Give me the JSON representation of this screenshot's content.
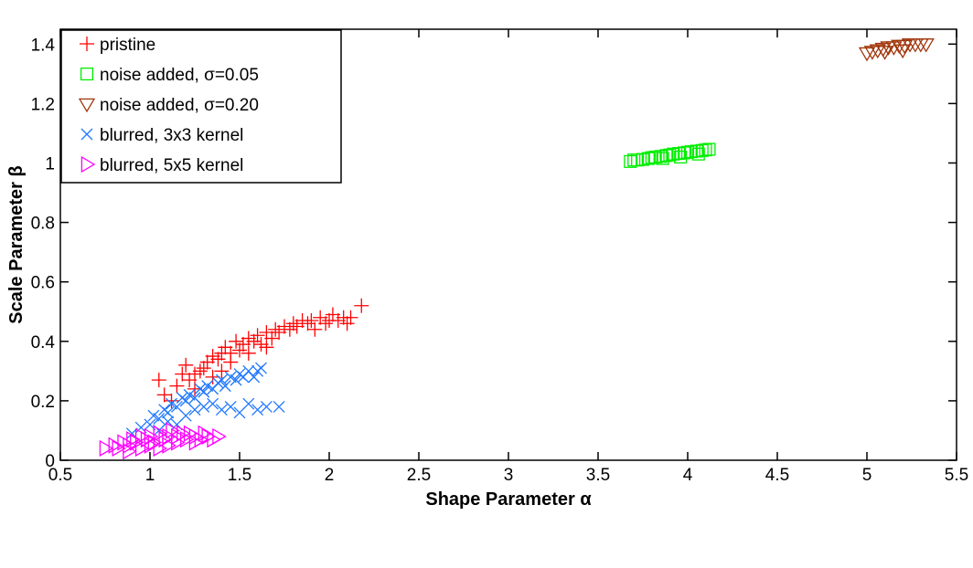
{
  "chart_data": {
    "type": "scatter",
    "title": "",
    "xlabel": "Shape Parameter α",
    "ylabel": "Scale Parameter β",
    "xlim": [
      0.5,
      5.5
    ],
    "ylim": [
      0,
      1.45
    ],
    "xticks": [
      "0.5",
      "1",
      "1.5",
      "2",
      "2.5",
      "3",
      "3.5",
      "4",
      "4.5",
      "5",
      "5.5"
    ],
    "yticks": [
      "0",
      "0.2",
      "0.4",
      "0.6",
      "0.8",
      "1",
      "1.2",
      "1.4"
    ],
    "grid": false,
    "legend_position": "top-left",
    "series": [
      {
        "name": "pristine",
        "marker": "plus",
        "color": "#ff0000",
        "points": [
          [
            1.05,
            0.27
          ],
          [
            1.08,
            0.22
          ],
          [
            1.12,
            0.2
          ],
          [
            1.15,
            0.25
          ],
          [
            1.18,
            0.29
          ],
          [
            1.2,
            0.32
          ],
          [
            1.22,
            0.27
          ],
          [
            1.25,
            0.29
          ],
          [
            1.28,
            0.3
          ],
          [
            1.3,
            0.31
          ],
          [
            1.32,
            0.33
          ],
          [
            1.35,
            0.35
          ],
          [
            1.38,
            0.34
          ],
          [
            1.4,
            0.36
          ],
          [
            1.42,
            0.38
          ],
          [
            1.45,
            0.36
          ],
          [
            1.48,
            0.4
          ],
          [
            1.5,
            0.37
          ],
          [
            1.52,
            0.39
          ],
          [
            1.55,
            0.41
          ],
          [
            1.58,
            0.4
          ],
          [
            1.6,
            0.42
          ],
          [
            1.62,
            0.39
          ],
          [
            1.65,
            0.43
          ],
          [
            1.68,
            0.41
          ],
          [
            1.7,
            0.44
          ],
          [
            1.72,
            0.43
          ],
          [
            1.75,
            0.45
          ],
          [
            1.78,
            0.44
          ],
          [
            1.8,
            0.46
          ],
          [
            1.82,
            0.45
          ],
          [
            1.85,
            0.47
          ],
          [
            1.88,
            0.46
          ],
          [
            1.9,
            0.47
          ],
          [
            1.92,
            0.44
          ],
          [
            1.95,
            0.48
          ],
          [
            1.98,
            0.46
          ],
          [
            2.0,
            0.47
          ],
          [
            2.02,
            0.49
          ],
          [
            2.05,
            0.47
          ],
          [
            2.08,
            0.48
          ],
          [
            2.1,
            0.46
          ],
          [
            2.12,
            0.48
          ],
          [
            2.18,
            0.52
          ],
          [
            1.35,
            0.28
          ],
          [
            1.45,
            0.33
          ],
          [
            1.55,
            0.36
          ],
          [
            1.65,
            0.38
          ],
          [
            1.25,
            0.24
          ],
          [
            1.4,
            0.3
          ]
        ]
      },
      {
        "name": "noise added,  σ=0.05",
        "marker": "square",
        "color": "#00ee00",
        "points": [
          [
            3.68,
            1.005
          ],
          [
            3.7,
            1.01
          ],
          [
            3.72,
            1.01
          ],
          [
            3.75,
            1.012
          ],
          [
            3.78,
            1.015
          ],
          [
            3.8,
            1.018
          ],
          [
            3.82,
            1.02
          ],
          [
            3.85,
            1.022
          ],
          [
            3.88,
            1.025
          ],
          [
            3.9,
            1.027
          ],
          [
            3.92,
            1.03
          ],
          [
            3.95,
            1.032
          ],
          [
            3.98,
            1.034
          ],
          [
            4.0,
            1.036
          ],
          [
            4.02,
            1.038
          ],
          [
            4.05,
            1.04
          ],
          [
            4.08,
            1.042
          ],
          [
            4.1,
            1.044
          ],
          [
            4.12,
            1.046
          ],
          [
            3.86,
            1.015
          ],
          [
            3.96,
            1.02
          ],
          [
            4.06,
            1.03
          ]
        ]
      },
      {
        "name": "noise added,  σ=0.20",
        "marker": "triangle-down",
        "color": "#a0350a",
        "points": [
          [
            5.0,
            1.37
          ],
          [
            5.03,
            1.375
          ],
          [
            5.06,
            1.38
          ],
          [
            5.09,
            1.385
          ],
          [
            5.12,
            1.39
          ],
          [
            5.15,
            1.39
          ],
          [
            5.18,
            1.395
          ],
          [
            5.21,
            1.395
          ],
          [
            5.24,
            1.4
          ],
          [
            5.27,
            1.4
          ],
          [
            5.3,
            1.4
          ],
          [
            5.33,
            1.4
          ],
          [
            5.1,
            1.375
          ],
          [
            5.2,
            1.38
          ]
        ]
      },
      {
        "name": "blurred, 3x3 kernel",
        "marker": "x",
        "color": "#1f77ff",
        "points": [
          [
            0.9,
            0.09
          ],
          [
            0.95,
            0.11
          ],
          [
            1.0,
            0.12
          ],
          [
            1.02,
            0.15
          ],
          [
            1.05,
            0.14
          ],
          [
            1.08,
            0.17
          ],
          [
            1.1,
            0.16
          ],
          [
            1.12,
            0.19
          ],
          [
            1.15,
            0.18
          ],
          [
            1.18,
            0.21
          ],
          [
            1.2,
            0.2
          ],
          [
            1.22,
            0.22
          ],
          [
            1.25,
            0.21
          ],
          [
            1.28,
            0.24
          ],
          [
            1.3,
            0.23
          ],
          [
            1.32,
            0.25
          ],
          [
            1.35,
            0.24
          ],
          [
            1.38,
            0.26
          ],
          [
            1.4,
            0.27
          ],
          [
            1.42,
            0.25
          ],
          [
            1.45,
            0.28
          ],
          [
            1.48,
            0.27
          ],
          [
            1.5,
            0.29
          ],
          [
            1.52,
            0.28
          ],
          [
            1.55,
            0.3
          ],
          [
            1.58,
            0.28
          ],
          [
            1.6,
            0.3
          ],
          [
            1.62,
            0.31
          ],
          [
            1.2,
            0.15
          ],
          [
            1.25,
            0.17
          ],
          [
            1.3,
            0.18
          ],
          [
            1.35,
            0.19
          ],
          [
            1.4,
            0.17
          ],
          [
            1.45,
            0.18
          ],
          [
            1.5,
            0.16
          ],
          [
            1.55,
            0.19
          ],
          [
            1.6,
            0.17
          ],
          [
            1.65,
            0.18
          ],
          [
            1.72,
            0.18
          ],
          [
            1.15,
            0.12
          ],
          [
            1.05,
            0.1
          ],
          [
            1.1,
            0.13
          ]
        ]
      },
      {
        "name": "blurred, 5x5 kernel",
        "marker": "triangle-right",
        "color": "#ff00ff",
        "points": [
          [
            0.75,
            0.04
          ],
          [
            0.8,
            0.05
          ],
          [
            0.82,
            0.04
          ],
          [
            0.85,
            0.06
          ],
          [
            0.88,
            0.05
          ],
          [
            0.9,
            0.07
          ],
          [
            0.92,
            0.06
          ],
          [
            0.95,
            0.08
          ],
          [
            0.98,
            0.07
          ],
          [
            1.0,
            0.08
          ],
          [
            1.02,
            0.06
          ],
          [
            1.05,
            0.09
          ],
          [
            1.08,
            0.07
          ],
          [
            1.1,
            0.08
          ],
          [
            1.12,
            0.1
          ],
          [
            1.15,
            0.08
          ],
          [
            1.18,
            0.09
          ],
          [
            1.2,
            0.07
          ],
          [
            1.22,
            0.09
          ],
          [
            1.25,
            0.08
          ],
          [
            1.28,
            0.07
          ],
          [
            1.3,
            0.09
          ],
          [
            1.32,
            0.08
          ],
          [
            1.35,
            0.07
          ],
          [
            1.38,
            0.08
          ],
          [
            0.95,
            0.04
          ],
          [
            1.0,
            0.05
          ],
          [
            1.05,
            0.04
          ],
          [
            1.1,
            0.05
          ],
          [
            1.15,
            0.06
          ],
          [
            0.88,
            0.03
          ],
          [
            1.25,
            0.06
          ]
        ]
      }
    ]
  }
}
